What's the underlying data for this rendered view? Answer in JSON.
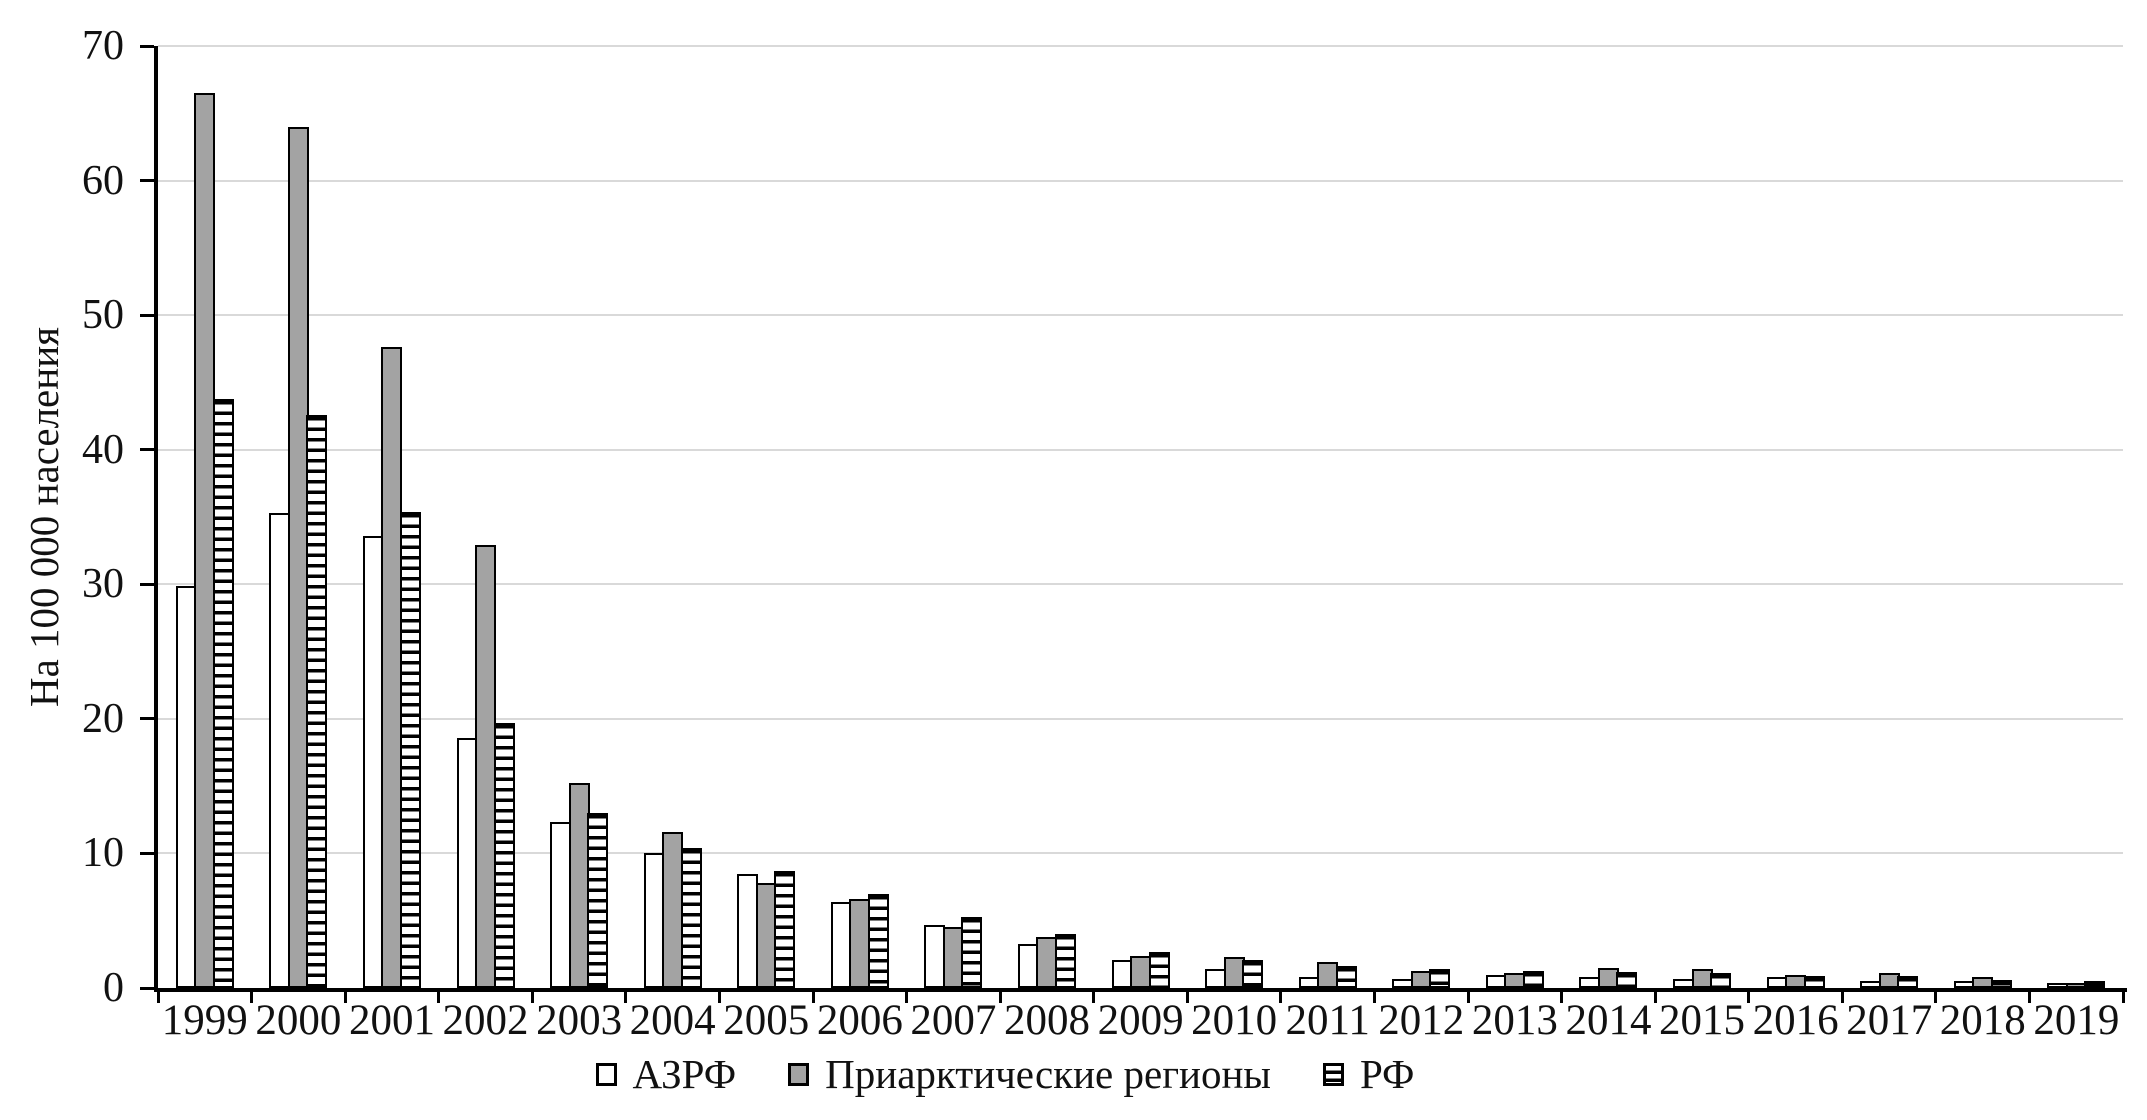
{
  "chart_data": {
    "type": "bar",
    "title": "",
    "xlabel": "",
    "ylabel": "На 100 000 населения",
    "ylim": [
      0,
      70
    ],
    "yticks": [
      0,
      10,
      20,
      30,
      40,
      50,
      60,
      70
    ],
    "grid": true,
    "legend_position": "bottom",
    "categories": [
      "1999",
      "2000",
      "2001",
      "2002",
      "2003",
      "2004",
      "2005",
      "2006",
      "2007",
      "2008",
      "2009",
      "2010",
      "2011",
      "2012",
      "2013",
      "2014",
      "2015",
      "2016",
      "2017",
      "2018",
      "2019"
    ],
    "series": [
      {
        "key": "azrf",
        "name": "АЗРФ",
        "pattern": "white",
        "values": [
          29.9,
          35.3,
          33.6,
          18.6,
          12.3,
          10.0,
          8.5,
          6.4,
          4.7,
          3.3,
          2.1,
          1.4,
          0.8,
          0.7,
          1.0,
          0.8,
          0.7,
          0.8,
          0.5,
          0.5,
          0.4
        ]
      },
      {
        "key": "priarctic",
        "name": "Приарктические регионы",
        "pattern": "gray",
        "values": [
          66.5,
          64.0,
          47.6,
          32.9,
          15.2,
          11.6,
          7.8,
          6.6,
          4.5,
          3.8,
          2.4,
          2.3,
          1.9,
          1.3,
          1.1,
          1.5,
          1.4,
          1.0,
          1.1,
          0.8,
          0.3
        ]
      },
      {
        "key": "rf",
        "name": "РФ",
        "pattern": "striped",
        "values": [
          43.8,
          42.6,
          35.4,
          19.7,
          13.0,
          10.4,
          8.7,
          7.0,
          5.3,
          4.0,
          2.7,
          2.1,
          1.6,
          1.4,
          1.3,
          1.2,
          1.1,
          0.9,
          0.9,
          0.6,
          0.5
        ]
      }
    ]
  },
  "colors": {
    "bar_gray_fill": "#a3a3a3",
    "bar_white_fill": "#ffffff",
    "bar_outline": "#000000",
    "gridline": "#d9d9d9",
    "axis": "#000000",
    "text": "#111111",
    "background": "#ffffff"
  }
}
